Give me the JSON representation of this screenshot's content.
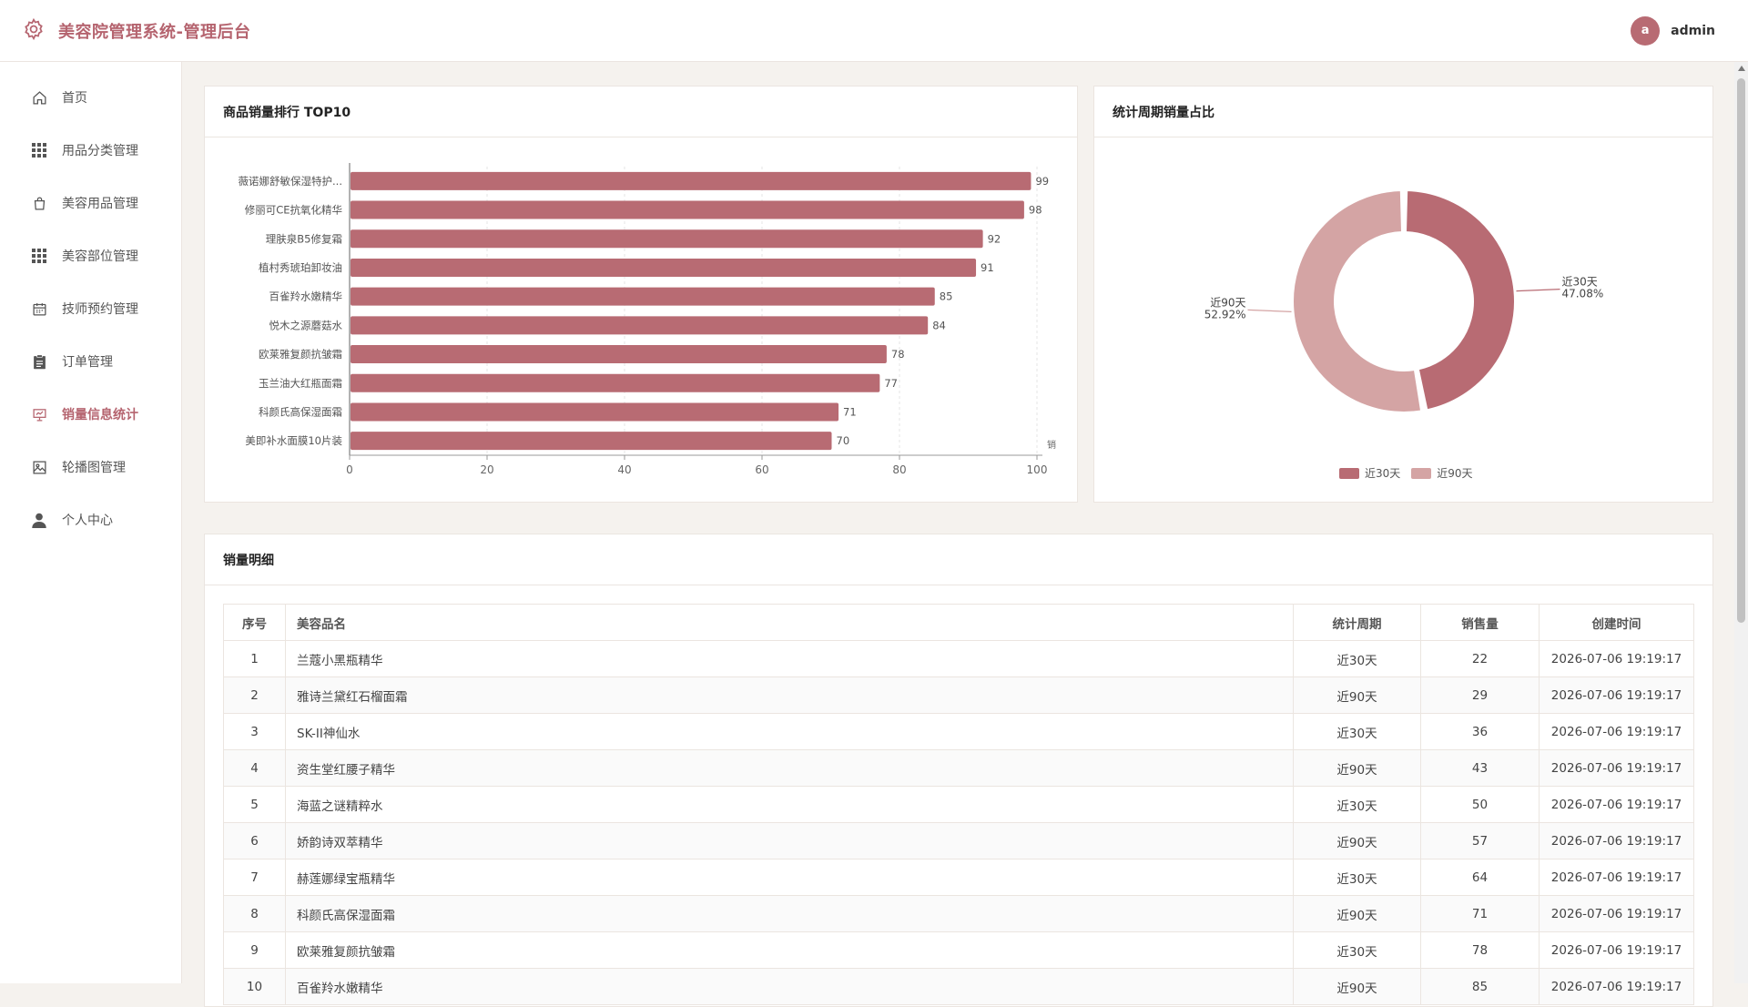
{
  "header": {
    "title": "美容院管理系统-管理后台",
    "user": {
      "avatar_letter": "a",
      "name": "admin"
    }
  },
  "sidebar": {
    "items": [
      {
        "label": "首页",
        "icon": "home-icon",
        "active": false
      },
      {
        "label": "用品分类管理",
        "icon": "grid-icon",
        "active": false
      },
      {
        "label": "美容用品管理",
        "icon": "bag-icon",
        "active": false
      },
      {
        "label": "美容部位管理",
        "icon": "grid-icon",
        "active": false
      },
      {
        "label": "技师预约管理",
        "icon": "calendar-icon",
        "active": false
      },
      {
        "label": "订单管理",
        "icon": "clipboard-icon",
        "active": false
      },
      {
        "label": "销量信息统计",
        "icon": "chart-icon",
        "active": true
      },
      {
        "label": "轮播图管理",
        "icon": "image-icon",
        "active": false
      },
      {
        "label": "个人中心",
        "icon": "user-icon",
        "active": false
      }
    ]
  },
  "cards": {
    "bar_title": "商品销量排行 TOP10",
    "pie_title": "统计周期销量占比",
    "table_title": "销量明细"
  },
  "colors": {
    "accent": "#b5646f",
    "bar": "#b86b73",
    "pie_30": "#b86b73",
    "pie_90": "#d4a4a4"
  },
  "chart_data": [
    {
      "type": "bar",
      "orientation": "horizontal",
      "categories": [
        "薇诺娜舒敏保湿特护...",
        "修丽可CE抗氧化精华",
        "理肤泉B5修复霜",
        "植村秀琥珀卸妆油",
        "百雀羚水嫩精华",
        "悦木之源蘑菇水",
        "欧莱雅复颜抗皱霜",
        "玉兰油大红瓶面霜",
        "科颜氏高保湿面霜",
        "美即补水面膜10片装"
      ],
      "values": [
        99,
        98,
        92,
        91,
        85,
        84,
        78,
        77,
        71,
        70
      ],
      "xticks": [
        0,
        20,
        40,
        60,
        80,
        100
      ],
      "xlabel": "销",
      "xlim": [
        0,
        100
      ],
      "grid": true,
      "data_labels": true
    },
    {
      "type": "pie",
      "donut": true,
      "slices": [
        {
          "name": "近30天",
          "value": 47.08,
          "label": "47.08%"
        },
        {
          "name": "近90天",
          "value": 52.92,
          "label": "52.92%"
        }
      ],
      "legend": "bottom-center"
    }
  ],
  "table": {
    "columns": [
      "序号",
      "美容品名",
      "统计周期",
      "销售量",
      "创建时间"
    ],
    "rows": [
      [
        "1",
        "兰蔻小黑瓶精华",
        "近30天",
        "22",
        "2026-07-06 19:19:17"
      ],
      [
        "2",
        "雅诗兰黛红石榴面霜",
        "近90天",
        "29",
        "2026-07-06 19:19:17"
      ],
      [
        "3",
        "SK-II神仙水",
        "近30天",
        "36",
        "2026-07-06 19:19:17"
      ],
      [
        "4",
        "资生堂红腰子精华",
        "近90天",
        "43",
        "2026-07-06 19:19:17"
      ],
      [
        "5",
        "海蓝之谜精粹水",
        "近30天",
        "50",
        "2026-07-06 19:19:17"
      ],
      [
        "6",
        "娇韵诗双萃精华",
        "近90天",
        "57",
        "2026-07-06 19:19:17"
      ],
      [
        "7",
        "赫莲娜绿宝瓶精华",
        "近30天",
        "64",
        "2026-07-06 19:19:17"
      ],
      [
        "8",
        "科颜氏高保湿面霜",
        "近90天",
        "71",
        "2026-07-06 19:19:17"
      ],
      [
        "9",
        "欧莱雅复颜抗皱霜",
        "近30天",
        "78",
        "2026-07-06 19:19:17"
      ],
      [
        "10",
        "百雀羚水嫩精华",
        "近90天",
        "85",
        "2026-07-06 19:19:17"
      ]
    ]
  }
}
